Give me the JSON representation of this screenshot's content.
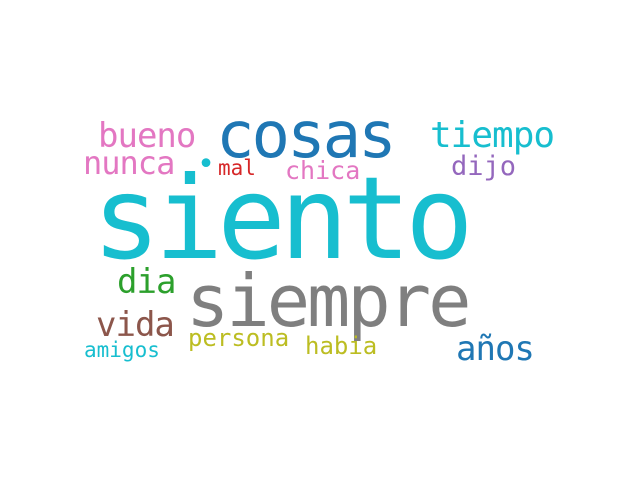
{
  "words": {
    "siento": {
      "text": "siento",
      "color": "#17becf"
    },
    "siempre": {
      "text": "siempre",
      "color": "#7f7f7f"
    },
    "cosas": {
      "text": "cosas",
      "color": "#1f77b4"
    },
    "tiempo": {
      "text": "tiempo",
      "color": "#17becf"
    },
    "bueno": {
      "text": "bueno",
      "color": "#e377c2"
    },
    "nunca": {
      "text": "nunca",
      "color": "#e377c2"
    },
    "mal": {
      "text": "mal",
      "color": "#d62728"
    },
    "chica": {
      "text": "chica",
      "color": "#e377c2"
    },
    "dijo": {
      "text": "dijo",
      "color": "#9467bd"
    },
    "dia": {
      "text": "dia",
      "color": "#2ca02c"
    },
    "vida": {
      "text": "vida",
      "color": "#8c564b"
    },
    "persona": {
      "text": "persona",
      "color": "#bcbd22"
    },
    "habia": {
      "text": "habia",
      "color": "#bcbd22"
    },
    "amigos": {
      "text": "amigos",
      "color": "#17becf"
    },
    "anos": {
      "text": "años",
      "color": "#1f77b4"
    },
    "dot": {
      "text": "•",
      "color": "#17becf"
    }
  }
}
